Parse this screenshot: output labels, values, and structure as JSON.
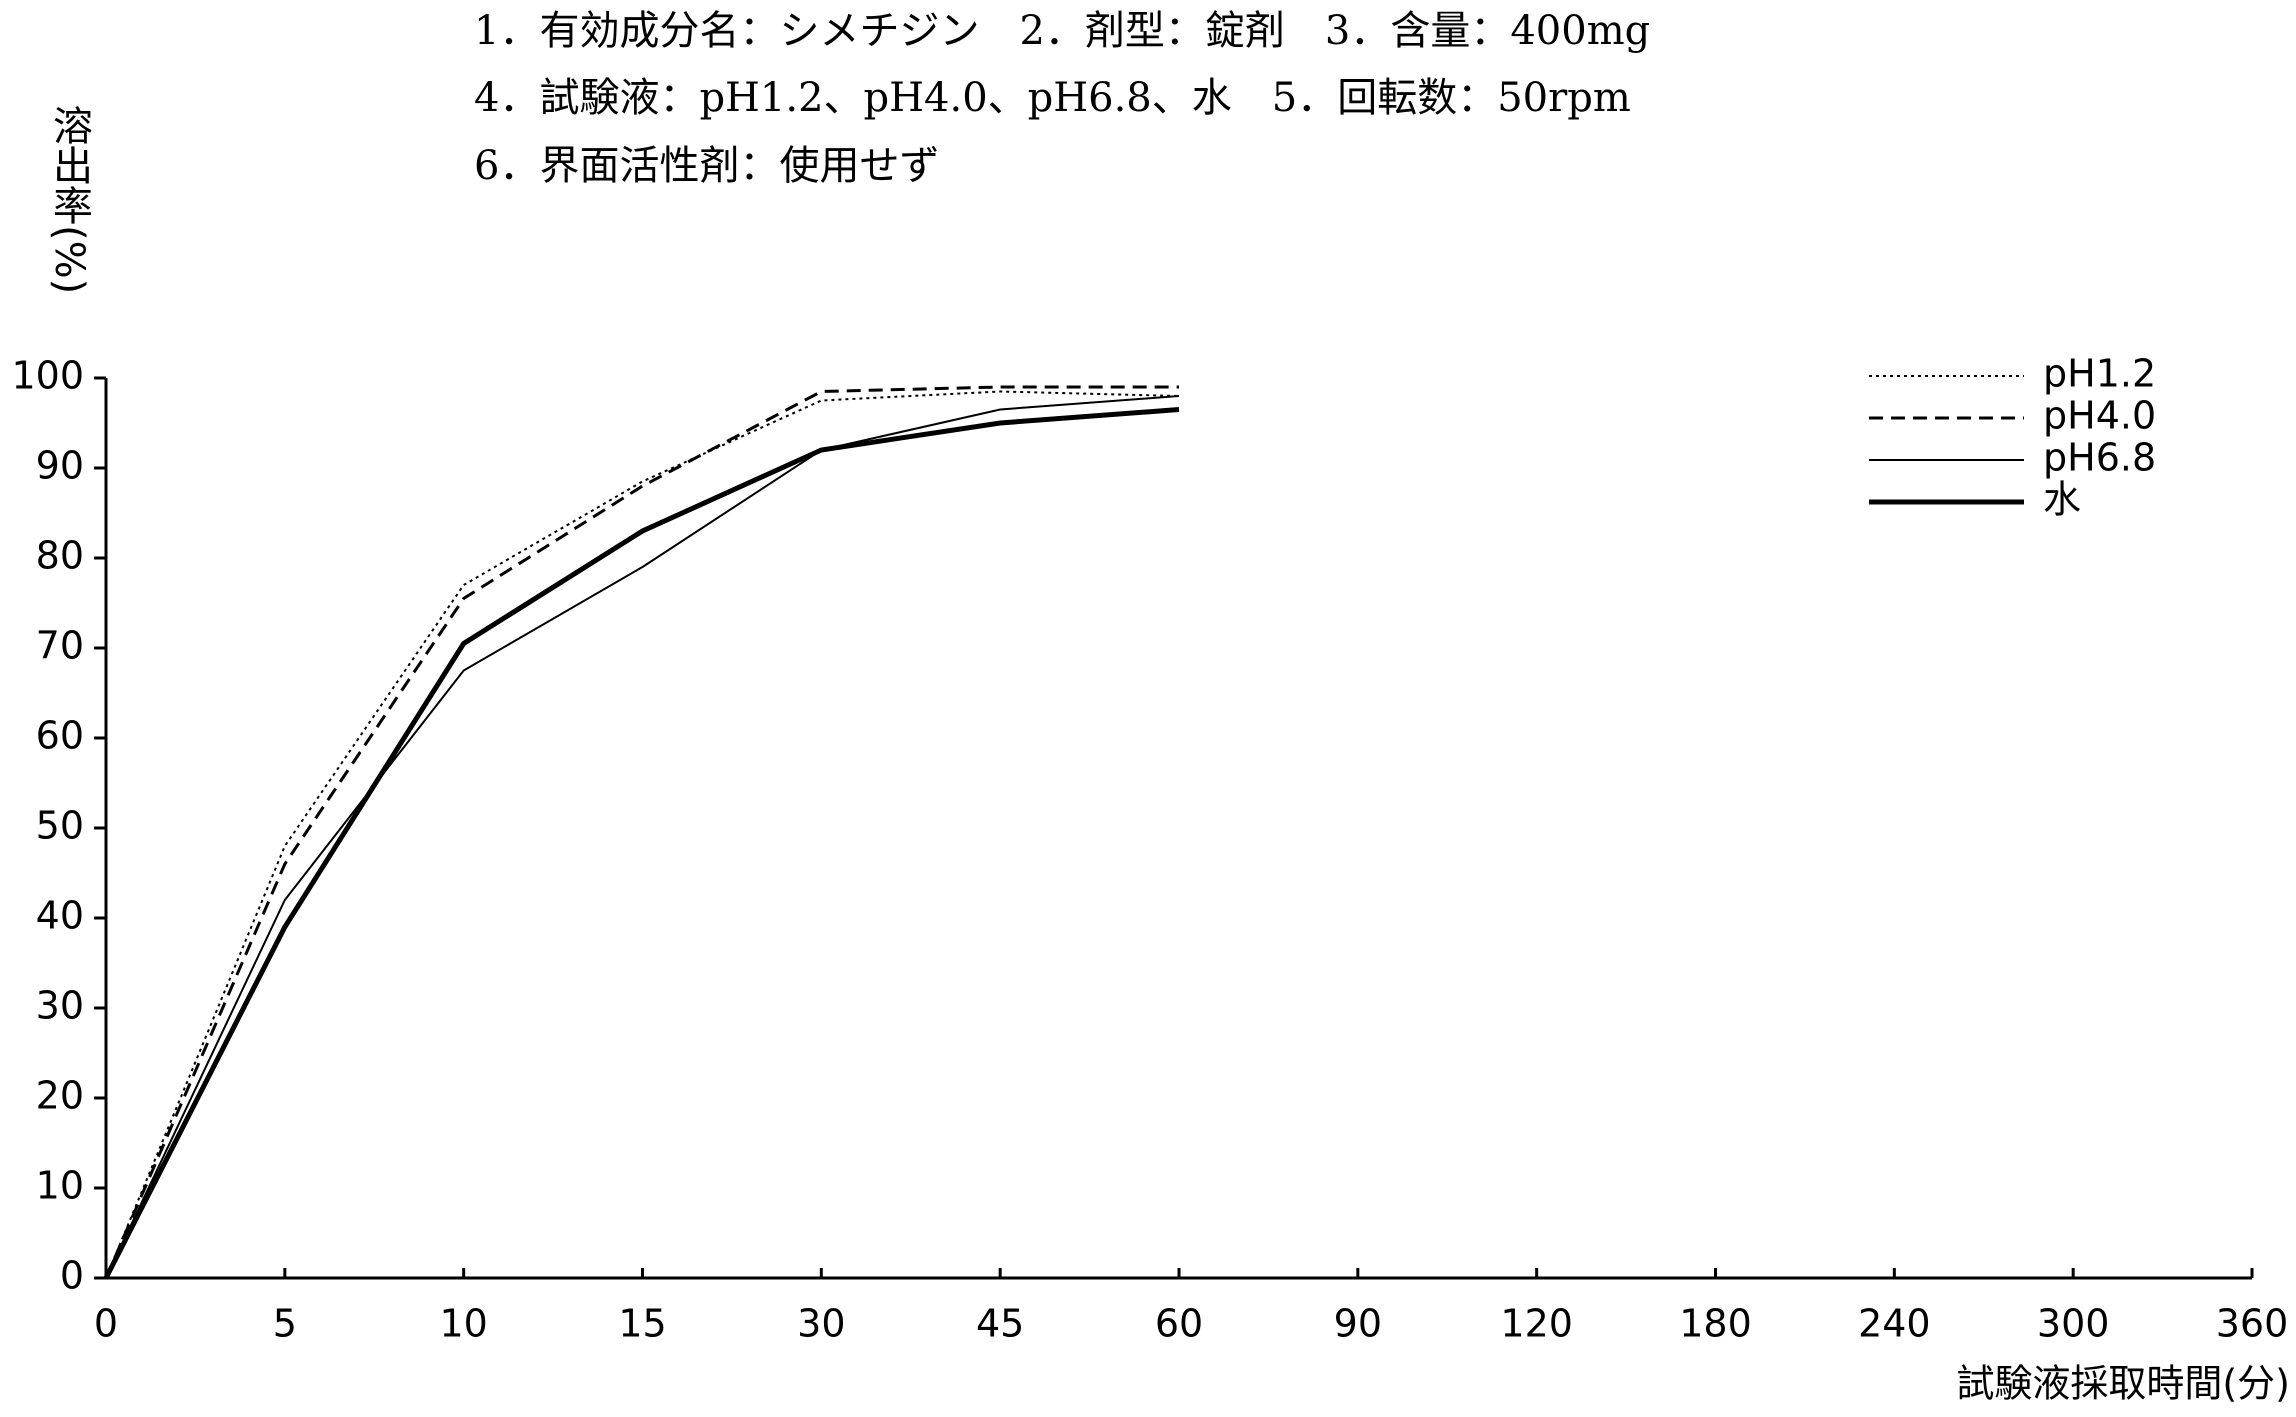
{
  "chart_data": {
    "type": "line",
    "title": [
      "1．有効成分名：シメチジン　2．剤型：錠剤　3．含量：400mg",
      "4．試験液：pH1.2、pH4.0、pH6.8、水　5．回転数：50rpm",
      "6．界面活性剤：使用せず"
    ],
    "y_label": "溶出率(%)",
    "x_label": "試験液採取時間(分)",
    "categories": [
      "0",
      "5",
      "10",
      "15",
      "30",
      "45",
      "60",
      "90",
      "120",
      "180",
      "240",
      "300",
      "360"
    ],
    "series": [
      {
        "name": "pH1.2",
        "color": "#000000",
        "style": "dotted",
        "values": [
          0,
          48,
          77,
          88.5,
          97.5,
          98.5,
          98,
          null,
          null,
          null,
          null,
          null,
          null
        ]
      },
      {
        "name": "pH4.0",
        "color": "#000000",
        "style": "dashed",
        "values": [
          0,
          46,
          75.5,
          88,
          98.5,
          99,
          99,
          null,
          null,
          null,
          null,
          null,
          null
        ]
      },
      {
        "name": "pH6.8",
        "color": "#000000",
        "style": "thin",
        "values": [
          0,
          42,
          67.5,
          79,
          92,
          96.5,
          98,
          null,
          null,
          null,
          null,
          null,
          null
        ]
      },
      {
        "name": "水",
        "color": "#000000",
        "style": "thick",
        "values": [
          0,
          39,
          70.5,
          83,
          92,
          95,
          96.5,
          null,
          null,
          null,
          null,
          null,
          null
        ]
      }
    ],
    "ylim": [
      0,
      100
    ],
    "yticks": [
      0,
      10,
      20,
      30,
      40,
      50,
      60,
      70,
      80,
      90,
      100
    ],
    "grid": false,
    "legend": "top-right"
  }
}
